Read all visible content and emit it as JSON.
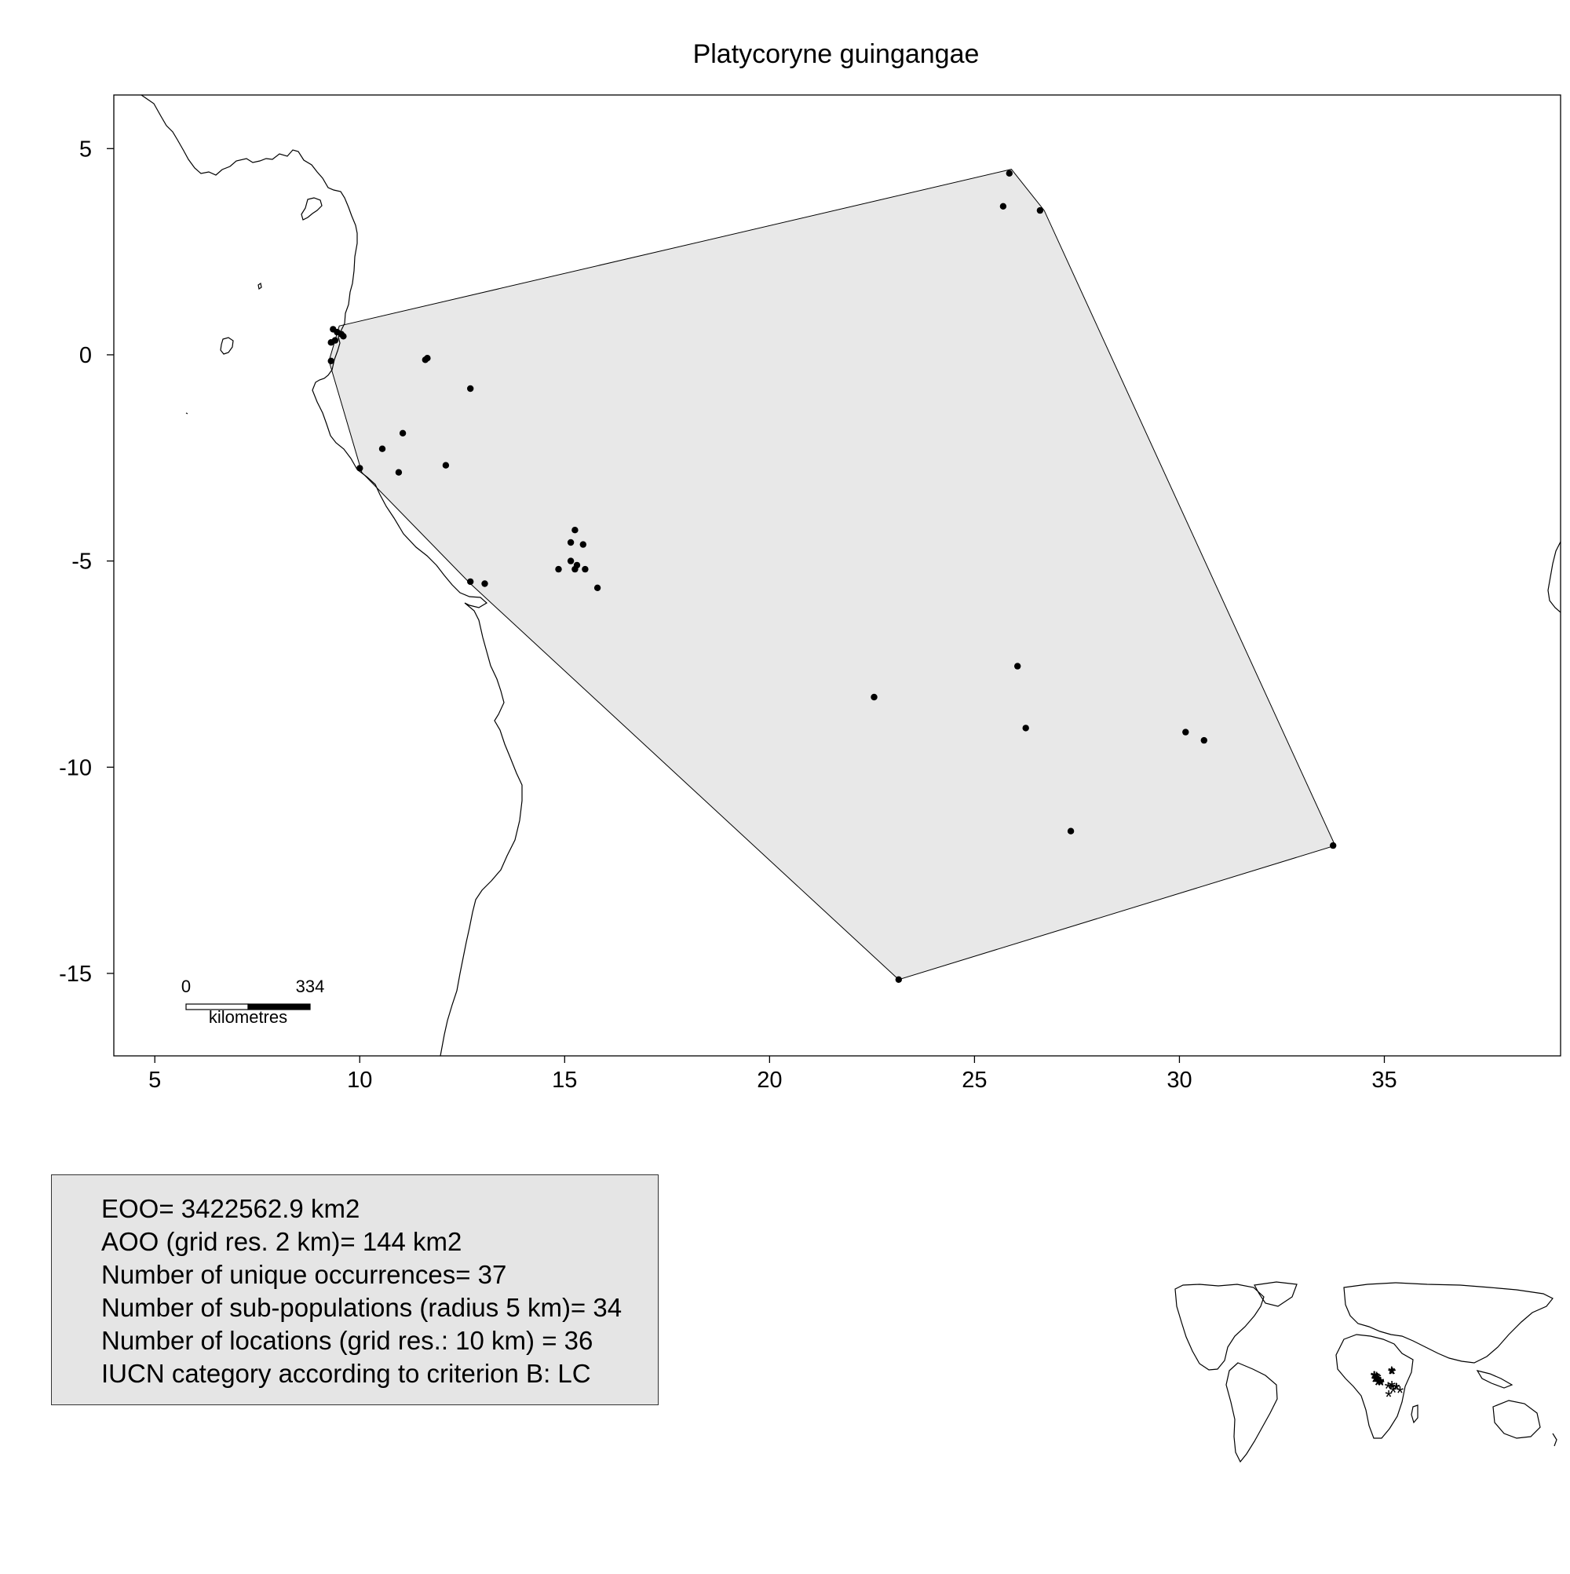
{
  "title": "Platycoryne guingangae",
  "map": {
    "xlim": [
      4,
      39.3
    ],
    "ylim": [
      -17,
      6.3
    ],
    "x_ticks": [
      5,
      10,
      15,
      20,
      25,
      30,
      35
    ],
    "y_ticks": [
      5,
      0,
      -5,
      -10,
      -15
    ],
    "hull_fill": "#e8e8e8",
    "point_color": "#000000",
    "occurrences": [
      [
        9.35,
        0.62
      ],
      [
        9.45,
        0.55
      ],
      [
        9.55,
        0.5
      ],
      [
        9.6,
        0.45
      ],
      [
        9.4,
        0.35
      ],
      [
        9.3,
        0.3
      ],
      [
        9.3,
        -0.15
      ],
      [
        11.6,
        -0.12
      ],
      [
        11.65,
        -0.08
      ],
      [
        12.7,
        -0.82
      ],
      [
        11.05,
        -1.9
      ],
      [
        10.55,
        -2.28
      ],
      [
        10.0,
        -2.75
      ],
      [
        10.95,
        -2.85
      ],
      [
        12.1,
        -2.68
      ],
      [
        15.25,
        -4.25
      ],
      [
        15.15,
        -4.55
      ],
      [
        15.45,
        -4.6
      ],
      [
        15.15,
        -5.0
      ],
      [
        15.3,
        -5.1
      ],
      [
        15.25,
        -5.2
      ],
      [
        14.85,
        -5.2
      ],
      [
        15.5,
        -5.2
      ],
      [
        15.8,
        -5.65
      ],
      [
        12.7,
        -5.5
      ],
      [
        13.05,
        -5.55
      ],
      [
        25.85,
        4.4
      ],
      [
        25.7,
        3.6
      ],
      [
        26.6,
        3.5
      ],
      [
        26.05,
        -7.55
      ],
      [
        22.55,
        -8.3
      ],
      [
        26.25,
        -9.05
      ],
      [
        30.15,
        -9.15
      ],
      [
        30.6,
        -9.35
      ],
      [
        27.35,
        -11.55
      ],
      [
        33.75,
        -11.9
      ],
      [
        23.15,
        -15.15
      ]
    ],
    "hull": [
      [
        9.5,
        0.7
      ],
      [
        25.9,
        4.5
      ],
      [
        26.7,
        3.5
      ],
      [
        33.8,
        -11.9
      ],
      [
        23.15,
        -15.15
      ],
      [
        12.7,
        -5.55
      ],
      [
        10.05,
        -2.85
      ],
      [
        9.25,
        -0.15
      ]
    ]
  },
  "scale_bar": {
    "zero_label": "0",
    "max_label": "334",
    "unit_label": "kilometres"
  },
  "stats": {
    "eoo": "EOO= 3422562.9 km2",
    "aoo": "AOO (grid res. 2 km)= 144 km2",
    "unique": "Number of unique occurrences= 37",
    "subpops": "Number of sub-populations (radius 5 km)= 34",
    "locations": "Number of locations (grid res.: 10  km) = 36",
    "iucn": "IUCN category according to criterion B: LC"
  },
  "inset": {
    "marker": "*",
    "marker_color": "#ff0000"
  }
}
